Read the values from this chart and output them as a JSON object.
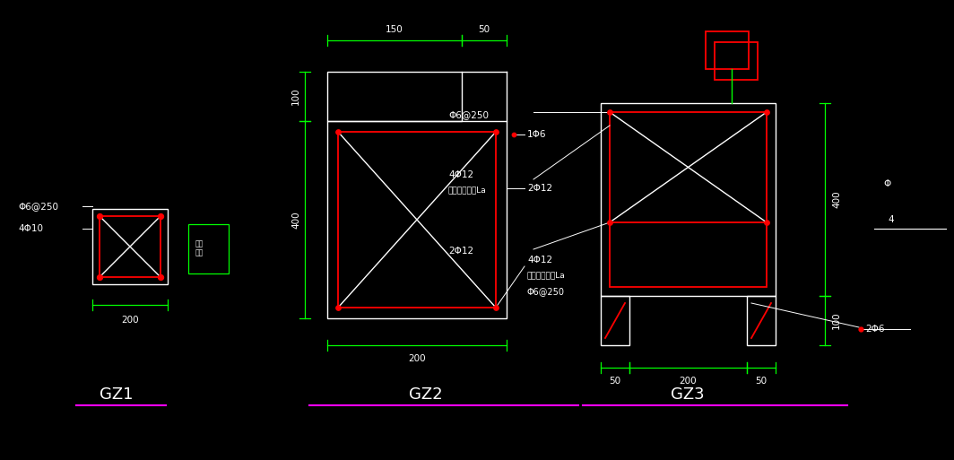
{
  "bg_color": "#000000",
  "green": "#00FF00",
  "red": "#FF0000",
  "white": "#FFFFFF",
  "magenta": "#FF00FF",
  "fig_w": 10.64,
  "fig_h": 5.13,
  "dpi": 100,
  "gz1": {
    "label": "GZ1",
    "stirrup": "Φ6@250",
    "main_bar": "4Φ10",
    "dim_w": "200"
  },
  "gz2": {
    "label": "GZ2",
    "dim_top1": "150",
    "dim_top2": "50",
    "dim_h1": "100",
    "dim_h2": "400",
    "dim_w": "200",
    "bar1": "1Φ6",
    "bar2": "2Φ12",
    "bar3": "4Φ12",
    "note3": "锶入下部梁中La",
    "bar4": "Φ6@250"
  },
  "gz3": {
    "label": "GZ3",
    "stirrup": "Φ6@250",
    "bar1": "4Φ12",
    "note1": "锶入下部梁中La",
    "bar2": "2Φ12",
    "bar3": "2Φ6",
    "dim_h": "400",
    "dim_base_h": "100",
    "dim_left": "50",
    "dim_mid": "200",
    "dim_right": "50"
  }
}
